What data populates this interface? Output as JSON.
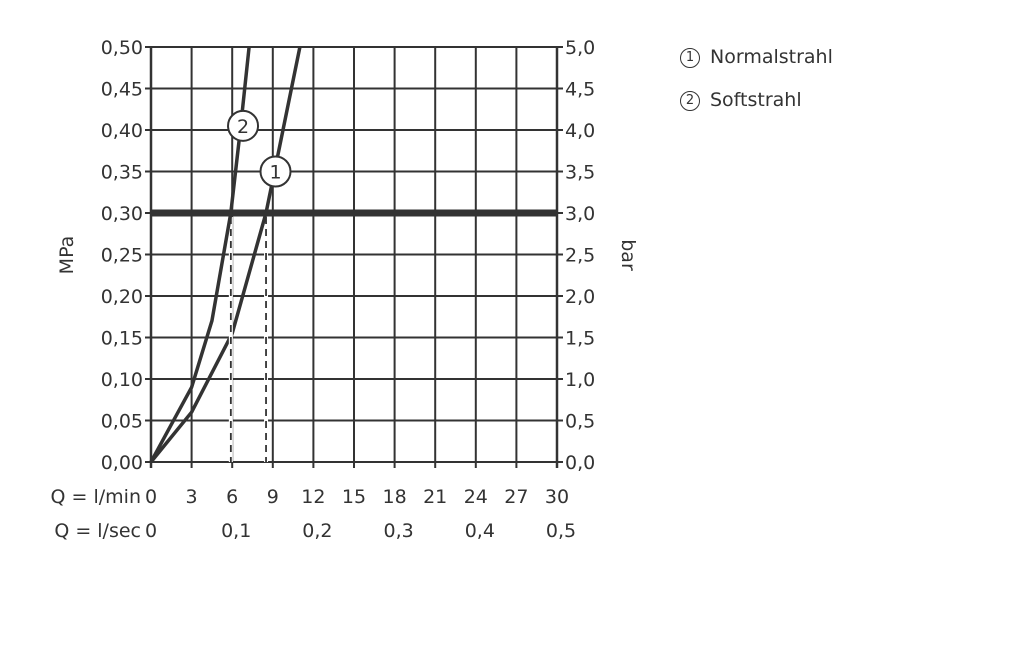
{
  "chart_data": {
    "type": "line",
    "xlabel": "Q = l/min",
    "xlabel2": "Q = l/sec",
    "ylabel": "MPa",
    "ylabel_right": "bar",
    "xlim": [
      0,
      30
    ],
    "ylim": [
      0,
      0.5
    ],
    "x_ticks": [
      "0",
      "3",
      "6",
      "9",
      "12",
      "15",
      "18",
      "21",
      "24",
      "27",
      "30"
    ],
    "x2_ticks": [
      "0",
      "0,1",
      "0,2",
      "0,3",
      "0,4",
      "0,5"
    ],
    "y_ticks": [
      "0,00",
      "0,05",
      "0,10",
      "0,15",
      "0,20",
      "0,25",
      "0,30",
      "0,35",
      "0,40",
      "0,45",
      "0,50"
    ],
    "y_right_ticks": [
      "0,0",
      "0,5",
      "1,0",
      "1,5",
      "2,0",
      "2,5",
      "3,0",
      "3,5",
      "4,0",
      "4,5",
      "5,0"
    ],
    "grid": true,
    "reference_line_y": 0.3,
    "legend_position": "top-right",
    "series": [
      {
        "name": "Normalstrahl",
        "marker": "1",
        "x": [
          0,
          3,
          6,
          8.5,
          9.5,
          11
        ],
        "y": [
          0,
          0.06,
          0.155,
          0.3,
          0.38,
          0.5
        ],
        "at_ref_flow": 8.5
      },
      {
        "name": "Softstrahl",
        "marker": "2",
        "x": [
          0,
          1.5,
          3,
          4.5,
          5.9,
          6.6,
          7.25
        ],
        "y": [
          0,
          0.045,
          0.09,
          0.17,
          0.3,
          0.4,
          0.5
        ],
        "at_ref_flow": 5.9
      }
    ],
    "colors": {
      "line": "#333333",
      "grid": "#333333"
    }
  }
}
